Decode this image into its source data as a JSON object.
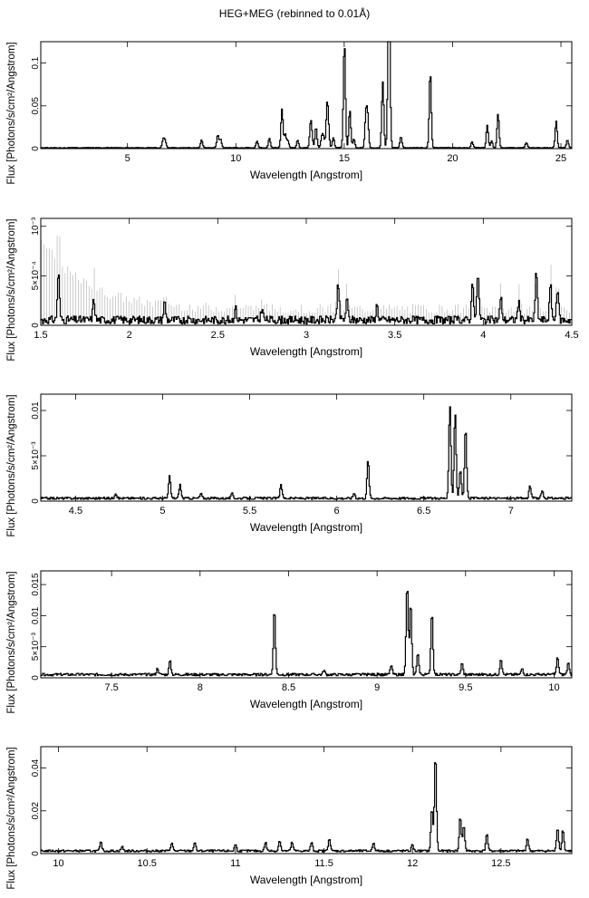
{
  "page": {
    "title": "HEG+MEG (rebinned to 0.01Å)"
  },
  "chart_data": [
    {
      "type": "line",
      "xlabel": "Wavelength [Angstrom]",
      "ylabel": "Flux [Photons/s/cm²/Angstrom]",
      "xlim": [
        1.0,
        25.5
      ],
      "ylim": [
        0,
        0.125
      ],
      "xticks": [
        {
          "v": 5,
          "label": "5"
        },
        {
          "v": 10,
          "label": "10"
        },
        {
          "v": 15,
          "label": "15"
        },
        {
          "v": 20,
          "label": "20"
        },
        {
          "v": 25,
          "label": "25"
        }
      ],
      "yticks": [
        {
          "v": 0,
          "label": "0"
        },
        {
          "v": 0.05,
          "label": "0.05"
        },
        {
          "v": 0.1,
          "label": "0.1"
        }
      ],
      "baseline": 0.001,
      "noise": 0.0008,
      "lines": [
        [
          15.01,
          0.123
        ],
        [
          16.78,
          0.077
        ],
        [
          17.05,
          0.11
        ],
        [
          17.08,
          0.112
        ],
        [
          18.97,
          0.089
        ],
        [
          14.21,
          0.045
        ],
        [
          15.26,
          0.044
        ],
        [
          12.13,
          0.045
        ],
        [
          22.1,
          0.04
        ],
        [
          21.6,
          0.026
        ],
        [
          24.78,
          0.031
        ],
        [
          13.45,
          0.025
        ],
        [
          13.7,
          0.024
        ],
        [
          16.0,
          0.037
        ],
        [
          16.08,
          0.035
        ],
        [
          14.27,
          0.02
        ],
        [
          12.28,
          0.016
        ],
        [
          11.55,
          0.011
        ],
        [
          10.98,
          0.008
        ],
        [
          17.62,
          0.013
        ],
        [
          13.97,
          0.013
        ],
        [
          14.5,
          0.012
        ],
        [
          9.17,
          0.015
        ],
        [
          9.3,
          0.01
        ],
        [
          8.42,
          0.009
        ],
        [
          6.65,
          0.01
        ],
        [
          6.74,
          0.008
        ],
        [
          15.45,
          0.01
        ],
        [
          13.5,
          0.012
        ],
        [
          14.05,
          0.011
        ],
        [
          12.4,
          0.008
        ],
        [
          12.85,
          0.009
        ],
        [
          21.8,
          0.008
        ],
        [
          23.4,
          0.006
        ],
        [
          20.9,
          0.007
        ],
        [
          25.3,
          0.009
        ]
      ]
    },
    {
      "type": "line",
      "xlabel": "Wavelength [Angstrom]",
      "ylabel": "Flux [Photons/s/cm²/Angstrom]",
      "xlim": [
        1.5,
        4.5
      ],
      "ylim": [
        0,
        0.00108
      ],
      "xticks": [
        {
          "v": 1.5,
          "label": "1.5"
        },
        {
          "v": 2,
          "label": "2"
        },
        {
          "v": 2.5,
          "label": "2.5"
        },
        {
          "v": 3,
          "label": "3"
        },
        {
          "v": 3.5,
          "label": "3.5"
        },
        {
          "v": 4,
          "label": "4"
        },
        {
          "v": 4.5,
          "label": "4.5"
        }
      ],
      "yticks": [
        {
          "v": 0,
          "label": "0"
        },
        {
          "v": 0.0005,
          "label": "5×10⁻⁴"
        },
        {
          "v": 0.001,
          "label": "10⁻³"
        }
      ],
      "baseline": 5e-05,
      "noise": 8e-05,
      "errorbars": true,
      "lines": [
        [
          1.6,
          0.00048
        ],
        [
          1.8,
          0.0002
        ],
        [
          2.2,
          0.00018
        ],
        [
          3.18,
          0.00037
        ],
        [
          3.94,
          0.0004
        ],
        [
          3.97,
          0.00048
        ],
        [
          4.3,
          0.00048
        ],
        [
          4.38,
          0.00035
        ],
        [
          4.42,
          0.00032
        ],
        [
          3.23,
          0.0002
        ],
        [
          3.4,
          0.00015
        ],
        [
          4.1,
          0.00022
        ],
        [
          4.2,
          0.00018
        ],
        [
          2.6,
          0.00012
        ],
        [
          2.75,
          0.00012
        ]
      ]
    },
    {
      "type": "line",
      "xlabel": "Wavelength [Angstrom]",
      "ylabel": "Flux [Photons/s/cm²/Angstrom]",
      "xlim": [
        4.3,
        7.35
      ],
      "ylim": [
        0,
        0.0118
      ],
      "xticks": [
        {
          "v": 4.5,
          "label": "4.5"
        },
        {
          "v": 5,
          "label": "5"
        },
        {
          "v": 5.5,
          "label": "5.5"
        },
        {
          "v": 6,
          "label": "6"
        },
        {
          "v": 6.5,
          "label": "6.5"
        },
        {
          "v": 7,
          "label": "7"
        }
      ],
      "yticks": [
        {
          "v": 0,
          "label": "0"
        },
        {
          "v": 0.005,
          "label": "5×10⁻³"
        },
        {
          "v": 0.01,
          "label": "0.01"
        }
      ],
      "baseline": 0.0003,
      "noise": 0.00025,
      "lines": [
        [
          5.04,
          0.0024
        ],
        [
          5.1,
          0.0015
        ],
        [
          5.68,
          0.0016
        ],
        [
          6.18,
          0.0042
        ],
        [
          6.65,
          0.0102
        ],
        [
          6.68,
          0.0095
        ],
        [
          6.74,
          0.0078
        ],
        [
          6.71,
          0.0032
        ],
        [
          7.11,
          0.0014
        ],
        [
          7.18,
          0.0008
        ],
        [
          4.73,
          0.0006
        ],
        [
          5.4,
          0.0005
        ],
        [
          5.22,
          0.0005
        ],
        [
          6.1,
          0.0006
        ]
      ]
    },
    {
      "type": "line",
      "xlabel": "Wavelength [Angstrom]",
      "ylabel": "Flux [Photons/s/cm²/Angstrom]",
      "xlim": [
        7.1,
        10.1
      ],
      "ylim": [
        0,
        0.0172
      ],
      "xticks": [
        {
          "v": 7.5,
          "label": "7.5"
        },
        {
          "v": 8,
          "label": "8"
        },
        {
          "v": 8.5,
          "label": "8.5"
        },
        {
          "v": 9,
          "label": "9"
        },
        {
          "v": 9.5,
          "label": "9.5"
        },
        {
          "v": 10,
          "label": "10"
        }
      ],
      "yticks": [
        {
          "v": 0,
          "label": "0"
        },
        {
          "v": 0.005,
          "label": "5×10⁻³"
        },
        {
          "v": 0.01,
          "label": "0.01"
        },
        {
          "v": 0.015,
          "label": "0.015"
        }
      ],
      "baseline": 0.0005,
      "noise": 0.0004,
      "lines": [
        [
          8.42,
          0.0105
        ],
        [
          9.17,
          0.0145
        ],
        [
          9.19,
          0.0115
        ],
        [
          9.31,
          0.0101
        ],
        [
          9.23,
          0.0035
        ],
        [
          7.83,
          0.0022
        ],
        [
          7.76,
          0.001
        ],
        [
          9.48,
          0.0018
        ],
        [
          9.7,
          0.0026
        ],
        [
          9.82,
          0.001
        ],
        [
          10.02,
          0.0028
        ],
        [
          10.08,
          0.0018
        ],
        [
          8.7,
          0.0007
        ],
        [
          9.08,
          0.0015
        ]
      ]
    },
    {
      "type": "line",
      "xlabel": "Wavelength [Angstrom]",
      "ylabel": "Flux [Photons/s/cm²/Angstrom]",
      "xlim": [
        9.9,
        12.9
      ],
      "ylim": [
        0,
        0.05
      ],
      "xticks": [
        {
          "v": 10,
          "label": "10"
        },
        {
          "v": 10.5,
          "label": "10.5"
        },
        {
          "v": 11,
          "label": "11"
        },
        {
          "v": 11.5,
          "label": "11.5"
        },
        {
          "v": 12,
          "label": "12"
        },
        {
          "v": 12.5,
          "label": "12.5"
        }
      ],
      "yticks": [
        {
          "v": 0,
          "label": "0"
        },
        {
          "v": 0.02,
          "label": "0.02"
        },
        {
          "v": 0.04,
          "label": "0.04"
        }
      ],
      "baseline": 0.0012,
      "noise": 0.001,
      "lines": [
        [
          12.13,
          0.045
        ],
        [
          12.11,
          0.02
        ],
        [
          12.27,
          0.016
        ],
        [
          12.29,
          0.012
        ],
        [
          12.42,
          0.008
        ],
        [
          12.82,
          0.011
        ],
        [
          12.85,
          0.01
        ],
        [
          10.24,
          0.004
        ],
        [
          10.64,
          0.004
        ],
        [
          10.77,
          0.004
        ],
        [
          11.0,
          0.003
        ],
        [
          11.17,
          0.004
        ],
        [
          11.25,
          0.005
        ],
        [
          11.32,
          0.004
        ],
        [
          11.43,
          0.004
        ],
        [
          11.53,
          0.006
        ],
        [
          11.78,
          0.004
        ],
        [
          12.0,
          0.003
        ],
        [
          12.65,
          0.006
        ],
        [
          10.36,
          0.002
        ]
      ]
    }
  ]
}
